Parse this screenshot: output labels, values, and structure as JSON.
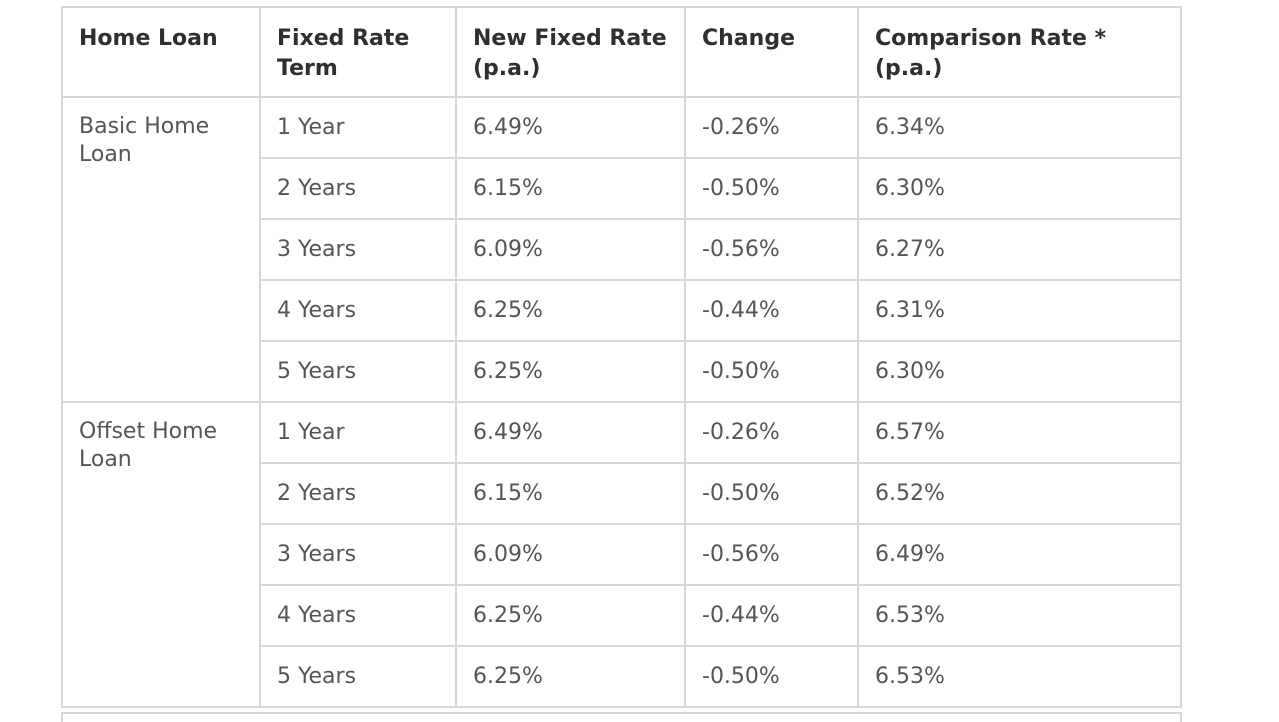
{
  "table": {
    "headers": [
      "Home Loan",
      "Fixed Rate Term",
      "New Fixed Rate (p.a.)",
      "Change",
      "Comparison Rate * (p.a.)"
    ],
    "groups": [
      {
        "name": "Basic Home Loan",
        "rows": [
          {
            "term": "1 Year",
            "rate": "6.49%",
            "change": "-0.26%",
            "comparison": "6.34%"
          },
          {
            "term": "2 Years",
            "rate": "6.15%",
            "change": "-0.50%",
            "comparison": "6.30%"
          },
          {
            "term": "3 Years",
            "rate": "6.09%",
            "change": "-0.56%",
            "comparison": "6.27%"
          },
          {
            "term": "4 Years",
            "rate": "6.25%",
            "change": "-0.44%",
            "comparison": "6.31%"
          },
          {
            "term": "5 Years",
            "rate": "6.25%",
            "change": "-0.50%",
            "comparison": "6.30%"
          }
        ]
      },
      {
        "name": "Offset Home Loan",
        "rows": [
          {
            "term": "1 Year",
            "rate": "6.49%",
            "change": "-0.26%",
            "comparison": "6.57%"
          },
          {
            "term": "2 Years",
            "rate": "6.15%",
            "change": "-0.50%",
            "comparison": "6.52%"
          },
          {
            "term": "3 Years",
            "rate": "6.09%",
            "change": "-0.56%",
            "comparison": "6.49%"
          },
          {
            "term": "4 Years",
            "rate": "6.25%",
            "change": "-0.44%",
            "comparison": "6.53%"
          },
          {
            "term": "5 Years",
            "rate": "6.25%",
            "change": "-0.50%",
            "comparison": "6.53%"
          }
        ]
      }
    ]
  }
}
